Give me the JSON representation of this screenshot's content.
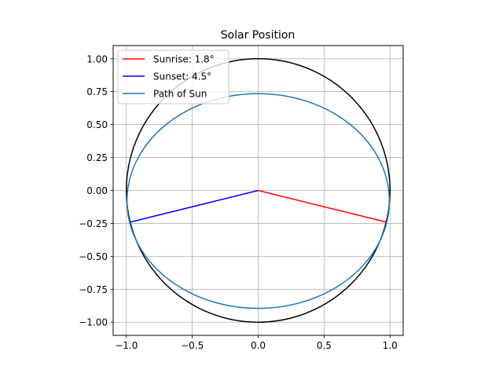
{
  "chart_data": {
    "type": "line",
    "title": "Solar Position",
    "xlabel": "",
    "ylabel": "",
    "xlim": [
      -1.1,
      1.1
    ],
    "ylim": [
      -1.1,
      1.1
    ],
    "aspect": "equal",
    "grid": true,
    "legend_position": "top-left",
    "x_ticks": [
      -1.0,
      -0.5,
      0.0,
      0.5,
      1.0
    ],
    "x_tick_labels": [
      "−1.0",
      "−0.5",
      "0.0",
      "0.5",
      "1.0"
    ],
    "y_ticks": [
      -1.0,
      -0.75,
      -0.5,
      -0.25,
      0.0,
      0.25,
      0.5,
      0.75,
      1.0
    ],
    "y_tick_labels": [
      "−1.00",
      "−0.75",
      "−0.50",
      "−0.25",
      "0.00",
      "0.25",
      "0.50",
      "0.75",
      "1.00"
    ],
    "reference_circle": {
      "center": [
        0,
        0
      ],
      "radius": 1.0,
      "color": "#000000"
    },
    "series": [
      {
        "name": "Sunrise: 1.8°",
        "color": "#ff0000",
        "points": [
          [
            0,
            0
          ],
          [
            0.97,
            -0.24
          ]
        ]
      },
      {
        "name": "Sunset: 4.5°",
        "color": "#0000ff",
        "points": [
          [
            0,
            0
          ],
          [
            -0.97,
            -0.24
          ]
        ]
      },
      {
        "name": "Path of Sun",
        "color": "#1f77b4",
        "ellipse": {
          "cx": 0,
          "cy": -0.08,
          "rx": 0.995,
          "ry": 0.815
        }
      }
    ]
  }
}
